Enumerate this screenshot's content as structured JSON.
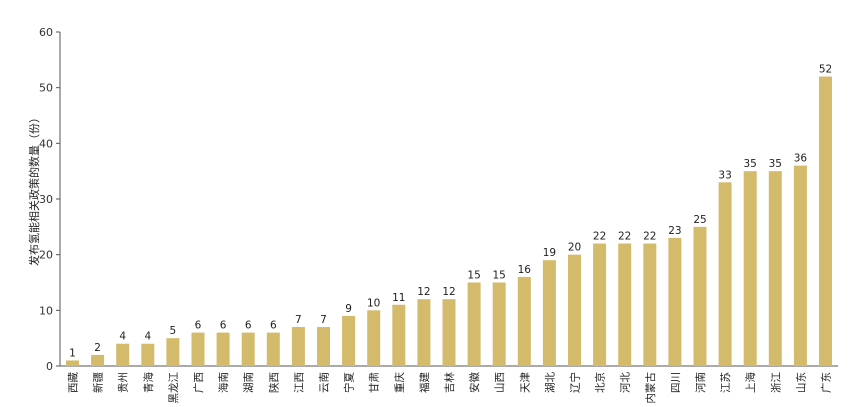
{
  "chart_data": {
    "type": "bar",
    "ylabel": "发布氢能相关政策的数量（份）",
    "ylim": [
      0,
      60
    ],
    "yticks": [
      0,
      10,
      20,
      30,
      40,
      50,
      60
    ],
    "grid": false,
    "bar_color": "#d4bb6b",
    "categories": [
      "西藏",
      "新疆",
      "贵州",
      "青海",
      "黑龙江",
      "广西",
      "海南",
      "湖南",
      "陕西",
      "江西",
      "云南",
      "宁夏",
      "甘肃",
      "重庆",
      "福建",
      "吉林",
      "安徽",
      "山西",
      "天津",
      "湖北",
      "辽宁",
      "北京",
      "河北",
      "内蒙古",
      "四川",
      "河南",
      "江苏",
      "上海",
      "浙江",
      "山东",
      "广东"
    ],
    "values": [
      1,
      2,
      4,
      4,
      5,
      6,
      6,
      6,
      6,
      7,
      7,
      9,
      10,
      11,
      12,
      12,
      15,
      15,
      16,
      19,
      20,
      22,
      22,
      22,
      23,
      25,
      33,
      35,
      35,
      36,
      52
    ]
  }
}
